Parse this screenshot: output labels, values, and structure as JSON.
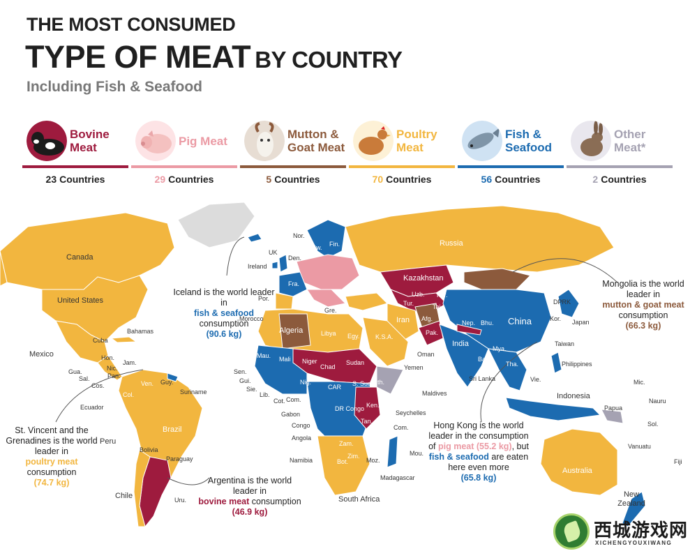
{
  "title": {
    "line1": "THE MOST CONSUMED",
    "line2_big": "TYPE OF MEAT",
    "line2_small": "BY COUNTRY",
    "subtitle": "Including Fish & Seafood"
  },
  "colors": {
    "bovine": "#9e1b3e",
    "pig": "#eb9aa4",
    "mutton": "#8c5a3c",
    "poultry": "#f2b63f",
    "fish": "#1c6bb0",
    "other": "#a5a2b2",
    "nodata": "#dcdcdc"
  },
  "legend": [
    {
      "key": "bovine",
      "label": "Bovine Meat",
      "count": "23",
      "count_label": "Countries",
      "icon": "cow-icon",
      "color": "#9e1b3e"
    },
    {
      "key": "pig",
      "label": "Pig Meat",
      "count": "29",
      "count_label": "Countries",
      "icon": "pig-icon",
      "color": "#eb9aa4"
    },
    {
      "key": "mutton",
      "label": "Mutton & Goat Meat",
      "count": "5",
      "count_label": "Countries",
      "icon": "goat-icon",
      "color": "#8c5a3c"
    },
    {
      "key": "poultry",
      "label": "Poultry Meat",
      "count": "70",
      "count_label": "Countries",
      "icon": "chicken-icon",
      "color": "#f2b63f"
    },
    {
      "key": "fish",
      "label": "Fish & Seafood",
      "count": "56",
      "count_label": "Countries",
      "icon": "fish-icon",
      "color": "#1c6bb0"
    },
    {
      "key": "other",
      "label": "Other Meat*",
      "count": "2",
      "count_label": "Countries",
      "icon": "rabbit-icon",
      "color": "#a5a2b2"
    }
  ],
  "country_labels": {
    "canada": "Canada",
    "usa": "United States",
    "mexico": "Mexico",
    "cuba": "Cuba",
    "bahamas": "Bahamas",
    "hon": "Hon.",
    "jam": "Jam.",
    "nic": "Nic.",
    "gua": "Gua.",
    "sal": "Sal.",
    "pan": "Pan.",
    "cos": "Cos.",
    "ven": "Ven.",
    "guy": "Guy.",
    "suriname": "Suriname",
    "col": "Col.",
    "ecuador": "Ecuador",
    "peru": "Peru",
    "brazil": "Brazil",
    "bolivia": "Bolivia",
    "paraguay": "Paraguay",
    "chile": "Chile",
    "uru": "Uru.",
    "nor": "Nor.",
    "sw": "Sw.",
    "fin": "Fin.",
    "uk": "UK",
    "den": "Den.",
    "ireland": "Ireland",
    "fra": "Fra.",
    "por": "Por.",
    "morocco": "Morocco",
    "algeria": "Algeria",
    "libya": "Libya",
    "egy": "Egy.",
    "russia": "Russia",
    "kazakhstan": "Kazakhstan",
    "uzb": "Uzb.",
    "tur": "Tur.",
    "kyr": "Kyr.",
    "taj": "Taj.",
    "iran": "Iran",
    "afg": "Afg.",
    "pak": "Pak.",
    "nep": "Nep.",
    "bhu": "Bhu.",
    "china": "China",
    "india": "India",
    "ksa": "K.S.A.",
    "oman": "Oman",
    "yemen": "Yemen",
    "ban": "Ban.",
    "mya": "Mya.",
    "tha": "Tha.",
    "vie": "Vie.",
    "srilanka": "Sri Lanka",
    "maldives": "Maldives",
    "dprk": "DPRK",
    "kor": "Kor.",
    "japan": "Japan",
    "taiwan": "Taiwan",
    "philippines": "Philippines",
    "indonesia": "Indonesia",
    "mau": "Mau.",
    "mali": "Mali",
    "niger": "Niger",
    "chad": "Chad",
    "sudan": "Sudan",
    "sen": "Sen.",
    "gui": "Gui.",
    "sie": "Sie.",
    "lib": "Lib.",
    "cot": "Cot.",
    "nig": "Nig.",
    "car": "CAR",
    "ssud": "S. Sud.",
    "eth": "Eth.",
    "com": "Com.",
    "gabon": "Gabon",
    "drc": "DR Congo",
    "congo": "Congo",
    "ken": "Ken.",
    "tan": "Tan.",
    "angola": "Angola",
    "zam": "Zam.",
    "zim": "Zim.",
    "moz": "Moz.",
    "namibia": "Namibia",
    "bot": "Bot.",
    "southafrica": "South Africa",
    "madagascar": "Madagascar",
    "seychelles": "Seychelles",
    "com2": "Com.",
    "mou": "Mou.",
    "mic": "Mic.",
    "nauru": "Nauru",
    "papua": "Papua",
    "sol": "Sol.",
    "vanuatu": "Vanuatu",
    "fiji": "Fiji",
    "australia": "Australia",
    "newzealand": "New Zealand",
    "gre": "Gre."
  },
  "notes": {
    "iceland": {
      "pre": "Iceland is the world leader in",
      "hl": "fish & seafood",
      "post": "consumption",
      "value": "(90.6 kg)"
    },
    "mongolia": {
      "pre": "Mongolia is the world leader in",
      "hl": "mutton & goat meat",
      "post": "consumption",
      "value": "(66.3 kg)"
    },
    "stvincent": {
      "pre": "St. Vincent and the Grenadines is the world leader in",
      "hl": "poultry meat",
      "post": "consumption",
      "value": "(74.7 kg)"
    },
    "argentina": {
      "pre": "Argentina is the world leader in",
      "hl": "bovine meat",
      "post": "consumption",
      "value": "(46.9 kg)"
    },
    "hongkong": {
      "pre": "Hong Kong is the world leader in the consumption of",
      "hl": "pig meat",
      "mid_value": "(55.2 kg)",
      "mid": ", but",
      "hl2": "fish & seafood",
      "post": "are eaten here even more",
      "value": "(65.8 kg)"
    }
  },
  "watermark": {
    "text": "西城游戏网",
    "sub": "XICHENGYOUXIWANG"
  }
}
